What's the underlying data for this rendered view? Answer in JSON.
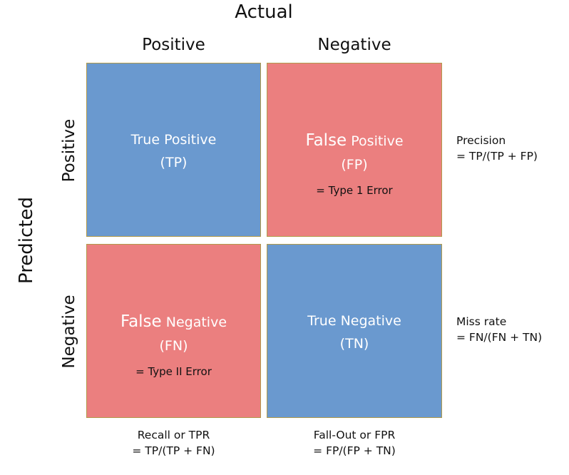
{
  "header": {
    "actual": "Actual",
    "actual_positive": "Positive",
    "actual_negative": "Negative",
    "predicted": "Predicted",
    "predicted_positive": "Positive",
    "predicted_negative": "Negative"
  },
  "cells": {
    "tp": {
      "word1": "True",
      "word2": "Positive",
      "abbr": "(TP)",
      "note": "",
      "color": "#6a99cf"
    },
    "fp": {
      "word1": "False",
      "word2": "Positive",
      "abbr": "(FP)",
      "note": "= Type 1 Error",
      "color": "#eb7f7f"
    },
    "fn": {
      "word1": "False",
      "word2": "Negative",
      "abbr": "(FN)",
      "note": "= Type II Error",
      "color": "#eb7f7f"
    },
    "tn": {
      "word1": "True",
      "word2": "Negative",
      "abbr": "(TN)",
      "note": "",
      "color": "#6a99cf"
    }
  },
  "row_metrics": {
    "precision_name": "Precision",
    "precision_formula": "= TP/(TP + FP)",
    "miss_rate_name": "Miss rate",
    "miss_rate_formula": "= FN/(FN + TN)"
  },
  "column_metrics": {
    "recall_name": "Recall or TPR",
    "recall_formula": "= TP/(TP + FN)",
    "fallout_name": "Fall-Out or FPR",
    "fallout_formula": "= FP/(FP + TN)"
  }
}
